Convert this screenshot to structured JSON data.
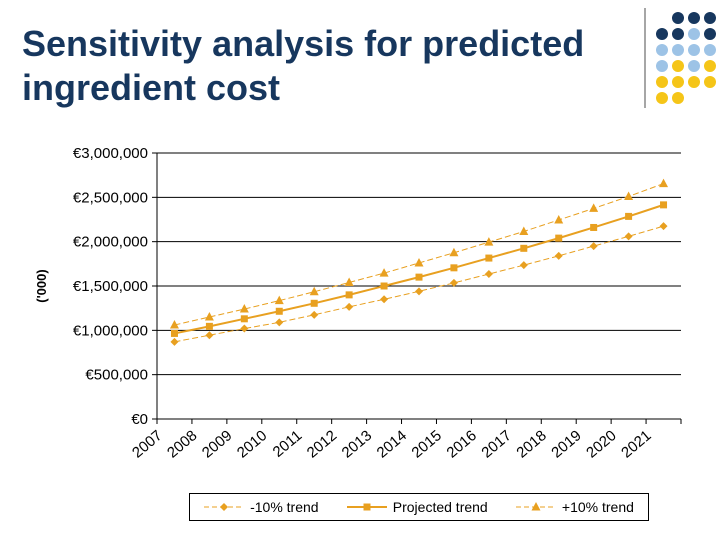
{
  "slide": {
    "title": "Sensitivity analysis for predicted ingredient cost"
  },
  "colors": {
    "title": "#17375e",
    "series": "#E8A020",
    "dot_dark": "#17375e",
    "dot_light": "#9DC3E6",
    "dot_yellow": "#F5C518"
  },
  "chart_data": {
    "type": "line",
    "title": "",
    "xlabel": "",
    "ylabel": "('000)",
    "categories": [
      "2007",
      "2008",
      "2009",
      "2010",
      "2011",
      "2012",
      "2013",
      "2014",
      "2015",
      "2016",
      "2017",
      "2018",
      "2019",
      "2020",
      "2021"
    ],
    "y_ticks": [
      "€0",
      "€500,000",
      "€1,000,000",
      "€1,500,000",
      "€2,000,000",
      "€2,500,000",
      "€3,000,000"
    ],
    "ylim": [
      0,
      3000000
    ],
    "grid": true,
    "legend_position": "bottom",
    "series": [
      {
        "name": "-10% trend",
        "marker": "diamond",
        "dashed": true,
        "values": [
          870000,
          945000,
          1020000,
          1090000,
          1175000,
          1265000,
          1350000,
          1440000,
          1535000,
          1635000,
          1735000,
          1840000,
          1950000,
          2060000,
          2175000
        ]
      },
      {
        "name": "Projected trend",
        "marker": "square",
        "dashed": false,
        "values": [
          965000,
          1045000,
          1130000,
          1215000,
          1305000,
          1400000,
          1500000,
          1600000,
          1705000,
          1815000,
          1925000,
          2040000,
          2160000,
          2285000,
          2415000
        ]
      },
      {
        "name": "+10% trend",
        "marker": "triangle",
        "dashed": true,
        "values": [
          1060000,
          1150000,
          1240000,
          1335000,
          1435000,
          1540000,
          1645000,
          1760000,
          1875000,
          1995000,
          2115000,
          2245000,
          2375000,
          2510000,
          2655000
        ]
      }
    ]
  }
}
